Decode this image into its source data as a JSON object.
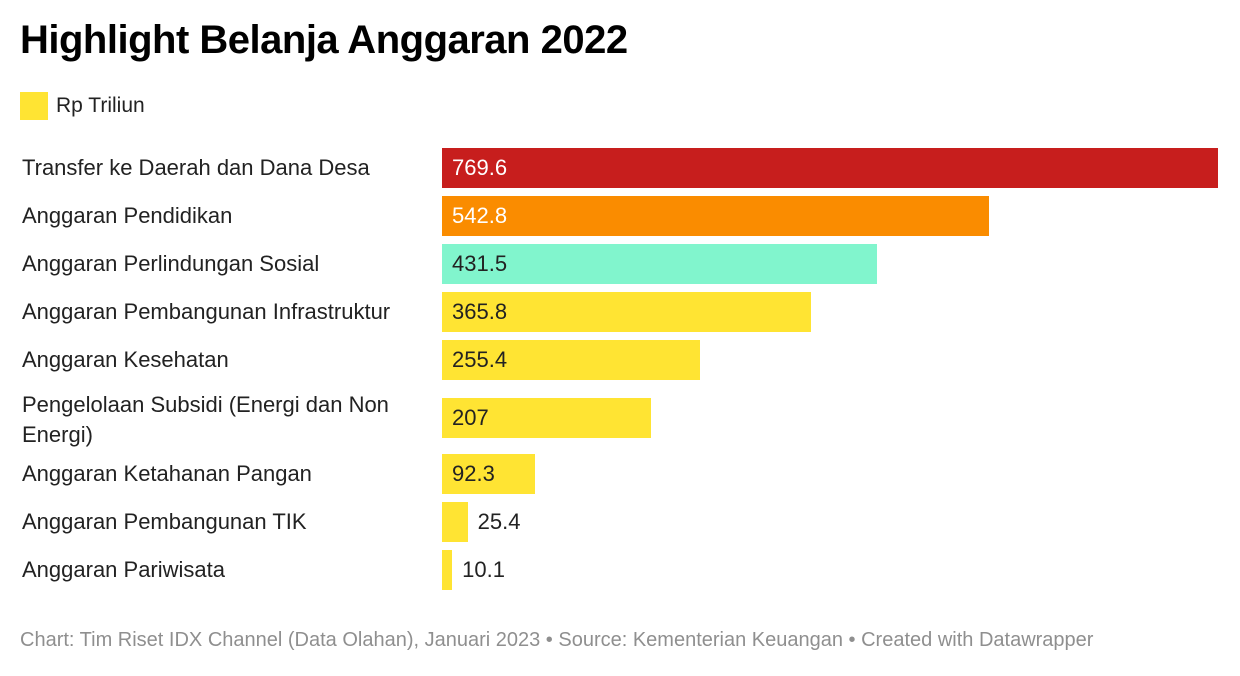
{
  "header": {
    "title": "Highlight Belanja Anggaran 2022"
  },
  "legend": {
    "label": "Rp Triliun",
    "color": "#ffe433"
  },
  "chart_data": {
    "type": "bar",
    "orientation": "horizontal",
    "title": "Highlight Belanja Anggaran 2022",
    "unit": "Rp Triliun",
    "categories": [
      "Transfer ke Daerah dan Dana Desa",
      "Anggaran Pendidikan",
      "Anggaran Perlindungan Sosial",
      "Anggaran Pembangunan Infrastruktur",
      "Anggaran Kesehatan",
      "Pengelolaan Subsidi (Energi dan Non Energi)",
      "Anggaran Ketahanan Pangan",
      "Anggaran Pembangunan TIK",
      "Anggaran Pariwisata"
    ],
    "values": [
      769.6,
      542.8,
      431.5,
      365.8,
      255.4,
      207,
      92.3,
      25.4,
      10.1
    ],
    "value_labels": [
      "769.6",
      "542.8",
      "431.5",
      "365.8",
      "255.4",
      "207",
      "92.3",
      "25.4",
      "10.1"
    ],
    "colors": [
      "#c71e1d",
      "#fa8c00",
      "#81f5cd",
      "#ffe433",
      "#ffe433",
      "#ffe433",
      "#ffe433",
      "#ffe433",
      "#ffe433"
    ],
    "label_colors": [
      "#ffffff",
      "#ffffff",
      "#222222",
      "#222222",
      "#222222",
      "#222222",
      "#222222",
      "#222222",
      "#222222"
    ],
    "xlim": [
      0,
      769.6
    ],
    "grid": false,
    "legend_position": "top-left"
  },
  "footer": {
    "text": "Chart: Tim Riset IDX Channel (Data Olahan), Januari 2023 • Source: Kementerian Keuangan • Created with Datawrapper"
  }
}
